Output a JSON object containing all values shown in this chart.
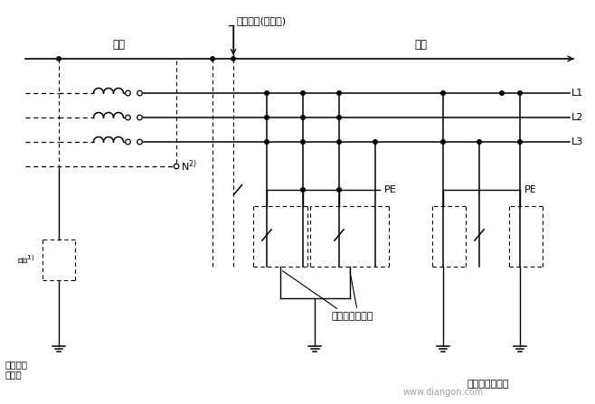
{
  "bg_color": "#ffffff",
  "fig_width": 6.58,
  "fig_height": 4.47,
  "dpi": 100,
  "label_diandian": "配电系统(如果有)",
  "label_dianyuan": "电源",
  "label_zhuangzhi": "装置",
  "label_L1": "L1",
  "label_L2": "L2",
  "label_L3": "L3",
  "label_N_super": "2)",
  "label_zuikang_super": "1)",
  "label_jiedian1": "在电源处\n的接地",
  "label_PE1": "PE",
  "label_PE2": "PE",
  "label_wailu": "外露可导电部分",
  "label_zhuangzhi_jd": "装置的保护接地",
  "label_watermark": "www.diangon.com"
}
